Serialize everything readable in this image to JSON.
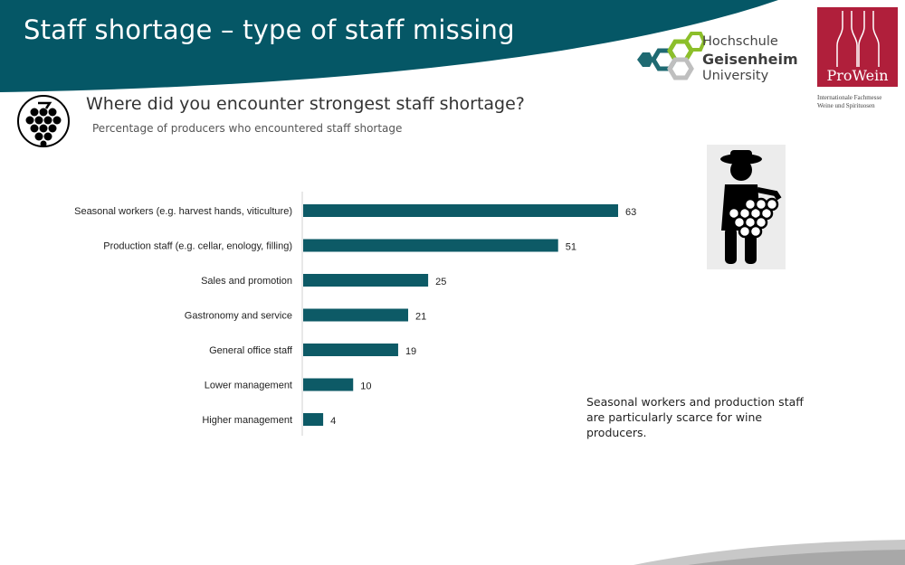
{
  "header": {
    "title": "Staff shortage – type of staff missing"
  },
  "logos": {
    "hgu": {
      "line1": "Hochschule",
      "line2": "Geisenheim",
      "line3": "University"
    },
    "prowein": {
      "name": "ProWein",
      "line1": "Internationale Fachmesse",
      "line2": "Weine und Spirituosen"
    }
  },
  "question": "Where did you encounter strongest staff shortage?",
  "subtitle": "Percentage of producers who encountered staff shortage",
  "note": "Seasonal workers and production staff are particularly scarce for wine producers.",
  "colors": {
    "banner": "#055766",
    "bar": "#0d5a66",
    "prowein": "#b01f3b"
  },
  "icons": [
    "grape-icon",
    "worker-with-grapes-icon"
  ],
  "chart_data": {
    "type": "bar",
    "orientation": "horizontal",
    "categories": [
      "Seasonal workers (e.g. harvest hands, viticulture)",
      "Production staff (e.g. cellar, enology, filling)",
      "Sales and promotion",
      "Gastronomy and service",
      "General office staff",
      "Lower management",
      "Higher management"
    ],
    "values": [
      63,
      51,
      25,
      21,
      19,
      10,
      4
    ],
    "xlim": [
      0,
      70
    ],
    "grid": false,
    "data_labels": true
  }
}
